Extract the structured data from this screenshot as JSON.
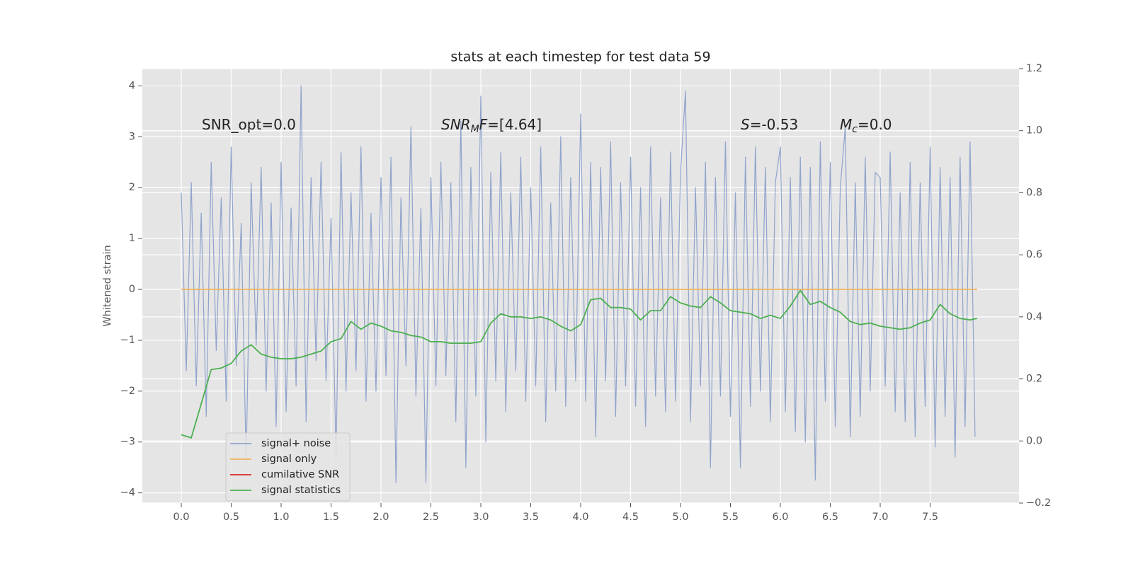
{
  "chart_data": {
    "type": "line",
    "title": "stats at each timestep for test data 59",
    "y_label": "Whitened strain",
    "xlim": [
      -0.39,
      8.39
    ],
    "ylim": [
      -4.2,
      4.34
    ],
    "y2lim": [
      -0.2,
      1.2
    ],
    "xticks": [
      {
        "value": 0,
        "label": "0.0"
      },
      0.5,
      {
        "value": 1,
        "label": "1.0"
      },
      1.5,
      {
        "value": 2,
        "label": "2.0"
      },
      2.5,
      {
        "value": 3,
        "label": "3.0"
      },
      3.5,
      {
        "value": 4,
        "label": "4.0"
      },
      4.5,
      {
        "value": 5,
        "label": "5.0"
      },
      5.5,
      {
        "value": 6,
        "label": "6.0"
      },
      6.5,
      {
        "value": 7,
        "label": "7.0"
      },
      7.5
    ],
    "yticks": [
      {
        "value": -4,
        "label": "−4"
      },
      {
        "value": -3,
        "label": "−3"
      },
      {
        "value": -2,
        "label": "−2"
      },
      {
        "value": -1,
        "label": "−1"
      },
      0,
      1,
      2,
      3,
      4
    ],
    "y2ticks": [
      {
        "value": -0.2,
        "label": "−0.2"
      },
      {
        "value": 0,
        "label": "0.0"
      },
      0.2,
      0.4,
      0.6,
      0.8,
      {
        "value": 1,
        "label": "1.0"
      },
      1.2
    ],
    "grid": true,
    "legend_loc": "lower left",
    "annotations": [
      {
        "parts": [
          {
            "text": "SNR_opt=0.0"
          }
        ]
      },
      {
        "parts": [
          {
            "text": "SNR",
            "italic": true
          },
          {
            "text": "M",
            "italic": true,
            "sub": true
          },
          {
            "text": "F",
            "italic": true
          },
          {
            "text": "=[4.64]"
          }
        ]
      },
      {
        "parts": [
          {
            "text": "S",
            "italic": true
          },
          {
            "text": "=-0.53"
          }
        ]
      },
      {
        "parts": [
          {
            "text": "M",
            "italic": true
          },
          {
            "text": "c",
            "italic": true,
            "sub": true
          },
          {
            "text": "=0.0"
          }
        ]
      }
    ],
    "series": [
      {
        "name": "signal+ noise",
        "color": "#8fa3cc",
        "x": [
          0,
          0.05,
          0.1,
          0.15,
          0.2,
          0.25,
          0.3,
          0.35,
          0.4,
          0.45,
          0.5,
          0.55,
          0.6,
          0.65,
          0.7,
          0.75,
          0.8,
          0.85,
          0.9,
          0.95,
          1,
          1.05,
          1.1,
          1.15,
          1.2,
          1.25,
          1.3,
          1.35,
          1.4,
          1.45,
          1.5,
          1.55,
          1.6,
          1.65,
          1.7,
          1.75,
          1.8,
          1.85,
          1.9,
          1.95,
          2,
          2.05,
          2.1,
          2.15,
          2.2,
          2.25,
          2.3,
          2.35,
          2.4,
          2.45,
          2.5,
          2.55,
          2.6,
          2.65,
          2.7,
          2.75,
          2.8,
          2.85,
          2.9,
          2.95,
          3,
          3.05,
          3.1,
          3.15,
          3.2,
          3.25,
          3.3,
          3.35,
          3.4,
          3.45,
          3.5,
          3.55,
          3.6,
          3.65,
          3.7,
          3.75,
          3.8,
          3.85,
          3.9,
          3.95,
          4,
          4.05,
          4.1,
          4.15,
          4.2,
          4.25,
          4.3,
          4.35,
          4.4,
          4.45,
          4.5,
          4.55,
          4.6,
          4.65,
          4.7,
          4.75,
          4.8,
          4.85,
          4.9,
          4.95,
          5,
          5.05,
          5.1,
          5.15,
          5.2,
          5.25,
          5.3,
          5.35,
          5.4,
          5.45,
          5.5,
          5.55,
          5.6,
          5.65,
          5.7,
          5.75,
          5.8,
          5.85,
          5.9,
          5.95,
          6,
          6.05,
          6.1,
          6.15,
          6.2,
          6.25,
          6.3,
          6.35,
          6.4,
          6.45,
          6.5,
          6.55,
          6.6,
          6.65,
          6.7,
          6.75,
          6.8,
          6.85,
          6.9,
          6.95,
          7,
          7.05,
          7.1,
          7.15,
          7.2,
          7.25,
          7.3,
          7.35,
          7.4,
          7.45,
          7.5,
          7.55,
          7.6,
          7.65,
          7.7,
          7.75,
          7.8,
          7.85,
          7.9,
          7.95
        ],
        "values": [
          1.9,
          -1.6,
          2.1,
          -1.9,
          1.5,
          -2.5,
          2.5,
          -1.2,
          1.8,
          -2.2,
          2.8,
          -1.5,
          1.3,
          -3.4,
          2.1,
          -1.1,
          2.4,
          -2.0,
          1.7,
          -2.7,
          2.5,
          -2.4,
          1.6,
          -1.9,
          4.0,
          -2.6,
          2.2,
          -1.4,
          2.5,
          -1.8,
          1.4,
          -3.3,
          2.7,
          -2.0,
          1.9,
          -1.6,
          2.8,
          -2.2,
          1.5,
          -2.0,
          2.2,
          -1.7,
          2.6,
          -3.8,
          1.8,
          -1.5,
          3.2,
          -2.1,
          1.6,
          -3.8,
          2.2,
          -1.9,
          2.5,
          -1.7,
          2.1,
          -2.6,
          3.3,
          -3.5,
          2.4,
          -2.1,
          3.8,
          -3.0,
          2.3,
          -1.8,
          2.7,
          -2.4,
          1.9,
          -1.6,
          2.6,
          -2.2,
          2.0,
          -1.9,
          2.8,
          -2.6,
          1.7,
          -2.0,
          3.0,
          -2.3,
          2.2,
          -1.8,
          3.45,
          -2.2,
          2.5,
          -2.9,
          2.4,
          -1.8,
          2.9,
          -2.5,
          2.1,
          -1.9,
          2.6,
          -2.3,
          2.0,
          -2.7,
          2.8,
          -2.1,
          1.8,
          -2.4,
          2.7,
          -2.2,
          2.3,
          3.9,
          -2.6,
          2.0,
          -1.9,
          2.5,
          -3.5,
          2.2,
          -2.1,
          2.9,
          -2.5,
          1.9,
          -3.5,
          2.6,
          -2.3,
          2.8,
          -2.0,
          2.4,
          -2.6,
          2.1,
          2.8,
          -2.4,
          2.2,
          -2.8,
          2.6,
          -3.0,
          2.4,
          -3.75,
          2.9,
          -2.2,
          2.5,
          -2.7,
          2.0,
          3.2,
          -2.9,
          2.1,
          -2.5,
          2.6,
          -2.0,
          2.3,
          2.2,
          -1.9,
          2.7,
          -2.4,
          1.9,
          -2.6,
          2.5,
          -2.9,
          2.1,
          -2.3,
          2.8,
          -3.1,
          2.4,
          -2.5,
          2.2,
          -3.3,
          2.6,
          -2.7,
          2.9,
          -2.9
        ]
      },
      {
        "name": "signal only",
        "color": "#f0b45a",
        "x": [
          0,
          7.97
        ],
        "values": [
          0,
          0
        ]
      },
      {
        "name": "cumilative SNR",
        "color": "#d62728",
        "x": [],
        "values": []
      },
      {
        "name": "signal statistics",
        "color": "#4caf50",
        "axis": "y2",
        "x": [
          0,
          0.1,
          0.2,
          0.3,
          0.4,
          0.5,
          0.6,
          0.7,
          0.8,
          0.9,
          1,
          1.1,
          1.2,
          1.3,
          1.4,
          1.5,
          1.6,
          1.7,
          1.8,
          1.9,
          2,
          2.1,
          2.2,
          2.3,
          2.4,
          2.5,
          2.6,
          2.7,
          2.8,
          2.9,
          3,
          3.1,
          3.2,
          3.3,
          3.4,
          3.5,
          3.6,
          3.7,
          3.8,
          3.9,
          4,
          4.1,
          4.2,
          4.3,
          4.4,
          4.5,
          4.6,
          4.7,
          4.8,
          4.9,
          5,
          5.1,
          5.2,
          5.3,
          5.4,
          5.5,
          5.6,
          5.7,
          5.8,
          5.9,
          6,
          6.1,
          6.2,
          6.3,
          6.4,
          6.5,
          6.6,
          6.7,
          6.8,
          6.9,
          7,
          7.1,
          7.2,
          7.3,
          7.4,
          7.5,
          7.6,
          7.7,
          7.8,
          7.9,
          7.97
        ],
        "values": [
          0.02,
          0.01,
          0.12,
          0.23,
          0.235,
          0.25,
          0.29,
          0.31,
          0.28,
          0.27,
          0.265,
          0.265,
          0.27,
          0.28,
          0.29,
          0.32,
          0.33,
          0.385,
          0.36,
          0.38,
          0.37,
          0.355,
          0.35,
          0.34,
          0.335,
          0.32,
          0.32,
          0.315,
          0.315,
          0.315,
          0.32,
          0.38,
          0.41,
          0.4,
          0.4,
          0.395,
          0.4,
          0.39,
          0.37,
          0.355,
          0.375,
          0.455,
          0.46,
          0.43,
          0.43,
          0.425,
          0.39,
          0.42,
          0.42,
          0.465,
          0.445,
          0.435,
          0.43,
          0.465,
          0.445,
          0.42,
          0.415,
          0.41,
          0.395,
          0.405,
          0.395,
          0.435,
          0.485,
          0.44,
          0.45,
          0.43,
          0.415,
          0.385,
          0.375,
          0.38,
          0.37,
          0.365,
          0.36,
          0.365,
          0.38,
          0.39,
          0.44,
          0.41,
          0.395,
          0.39,
          0.395
        ]
      }
    ]
  }
}
